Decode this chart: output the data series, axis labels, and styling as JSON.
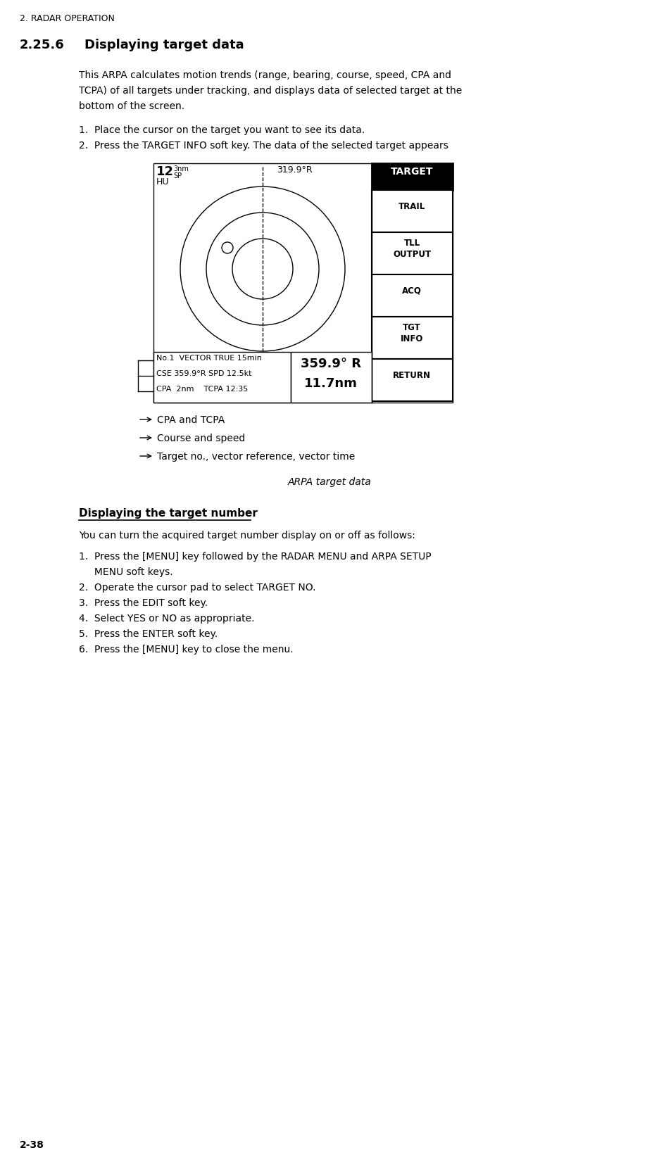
{
  "page_header": "2. RADAR OPERATION",
  "section": "2.25.6",
  "section_title": "Displaying target data",
  "para1_line1": "This ARPA calculates motion trends (range, bearing, course, speed, CPA and",
  "para1_line2": "TCPA) of all targets under tracking, and displays data of selected target at the",
  "para1_line3": "bottom of the screen.",
  "step1": "1.  Place the cursor on the target you want to see its data.",
  "step2": "2.  Press the TARGET INFO soft key. The data of the selected target appears",
  "radar_top_left_num": "12",
  "radar_top_left_sup1": "3nm",
  "radar_top_left_sup2": "SP",
  "radar_top_left_sub": "HU",
  "radar_top_center": "319.9°R",
  "soft_keys": [
    "TARGET",
    "TRAIL",
    "TLL\nOUTPUT",
    "ACQ",
    "TGT\nINFO",
    "RETURN"
  ],
  "soft_key_fill": [
    "black",
    "white",
    "white",
    "white",
    "white",
    "white"
  ],
  "soft_key_tcolor": [
    "white",
    "black",
    "black",
    "black",
    "black",
    "black"
  ],
  "data_box_line1": "No.1  VECTOR TRUE 15min",
  "data_box_line2": "CSE 359.9°R SPD 12.5kt",
  "data_box_line3": "CPA  2nm    TCPA 12:35",
  "data_box_right1": "359.9° R",
  "data_box_right2": "11.7nm",
  "label1": "CPA and TCPA",
  "label2": "Course and speed",
  "label3": "Target no., vector reference, vector time",
  "caption": "ARPA target data",
  "sub_title": "Displaying the target number",
  "sub_para": "You can turn the acquired target number display on or off as follows:",
  "sub_steps": [
    "1.  Press the [MENU] key followed by the RADAR MENU and ARPA SETUP",
    "     MENU soft keys.",
    "2.  Operate the cursor pad to select TARGET NO.",
    "3.  Press the EDIT soft key.",
    "4.  Select YES or NO as appropriate.",
    "5.  Press the ENTER soft key.",
    "6.  Press the [MENU] key to close the menu."
  ],
  "page_number": "2-38",
  "bg_color": "#ffffff",
  "fig_width": 9.37,
  "fig_height": 16.34,
  "dpi": 100
}
